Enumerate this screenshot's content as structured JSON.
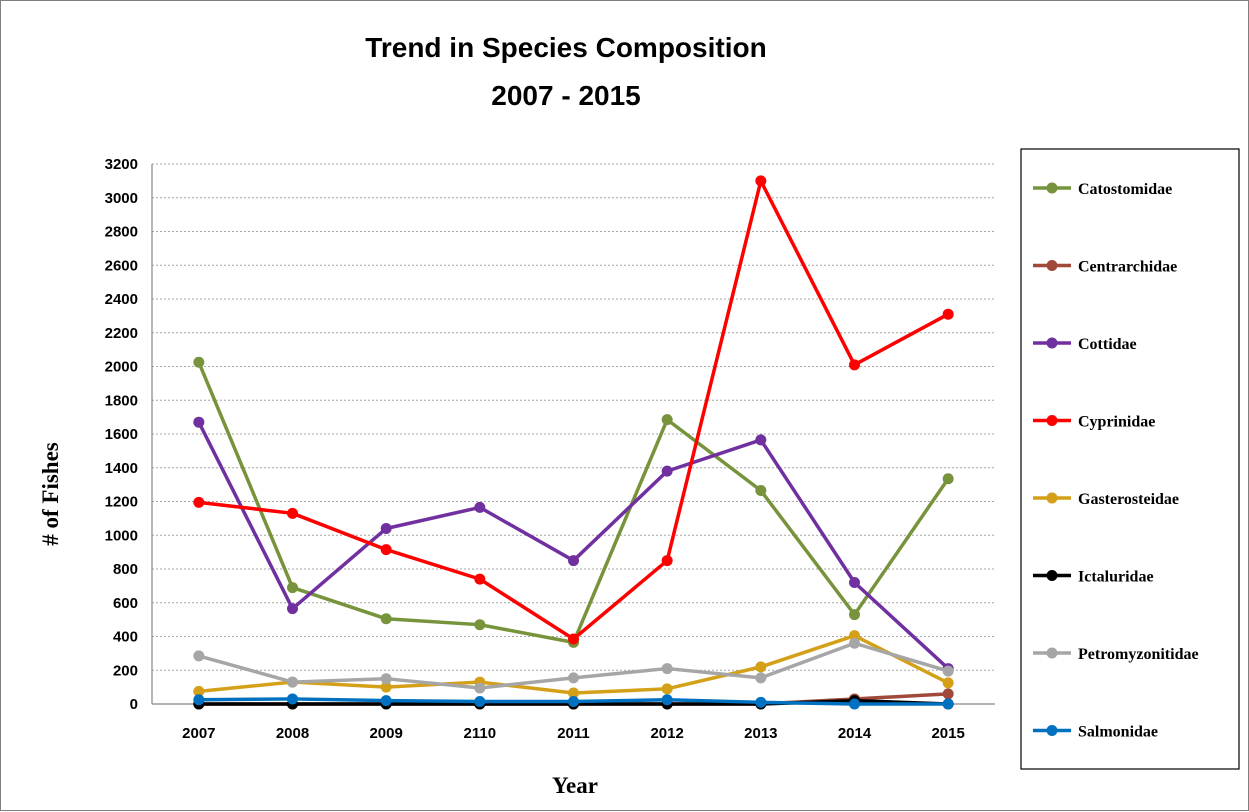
{
  "chart_data": {
    "type": "line",
    "title_lines": [
      "Trend in Species Composition",
      "2007 - 2015"
    ],
    "xlabel": "Year",
    "ylabel": "# of Fishes",
    "categories": [
      "2007",
      "2008",
      "2009",
      "2110",
      "2011",
      "2012",
      "2013",
      "2014",
      "2015"
    ],
    "ylim": [
      0,
      3200
    ],
    "yticks": [
      0,
      200,
      400,
      600,
      800,
      1000,
      1200,
      1400,
      1600,
      1800,
      2000,
      2200,
      2400,
      2600,
      2800,
      3000,
      3200
    ],
    "grid": "horizontal dashed",
    "legend_position": "right",
    "series": [
      {
        "name": "Catostomidae",
        "color": "#77933c",
        "values": [
          2025,
          690,
          505,
          470,
          365,
          1685,
          1265,
          530,
          1335
        ]
      },
      {
        "name": "Centrarchidae",
        "color": "#a0493a",
        "values": [
          0,
          0,
          0,
          0,
          0,
          0,
          0,
          30,
          60
        ]
      },
      {
        "name": "Cottidae",
        "color": "#7030a0",
        "values": [
          1670,
          565,
          1040,
          1165,
          850,
          1380,
          1565,
          720,
          210
        ]
      },
      {
        "name": "Cyprinidae",
        "color": "#ff0000",
        "values": [
          1195,
          1130,
          915,
          740,
          385,
          850,
          3100,
          2010,
          2310
        ]
      },
      {
        "name": "Gasterosteidae",
        "color": "#d4a017",
        "values": [
          75,
          130,
          100,
          130,
          65,
          90,
          220,
          405,
          125
        ]
      },
      {
        "name": "Ictaluridae",
        "color": "#000000",
        "values": [
          0,
          0,
          0,
          0,
          0,
          0,
          0,
          20,
          0
        ]
      },
      {
        "name": "Petromyzonitidae",
        "color": "#a6a6a6",
        "values": [
          285,
          130,
          150,
          95,
          155,
          210,
          155,
          360,
          195
        ]
      },
      {
        "name": "Salmonidae",
        "color": "#0070c0",
        "values": [
          25,
          30,
          20,
          15,
          15,
          25,
          10,
          0,
          0
        ]
      }
    ]
  }
}
